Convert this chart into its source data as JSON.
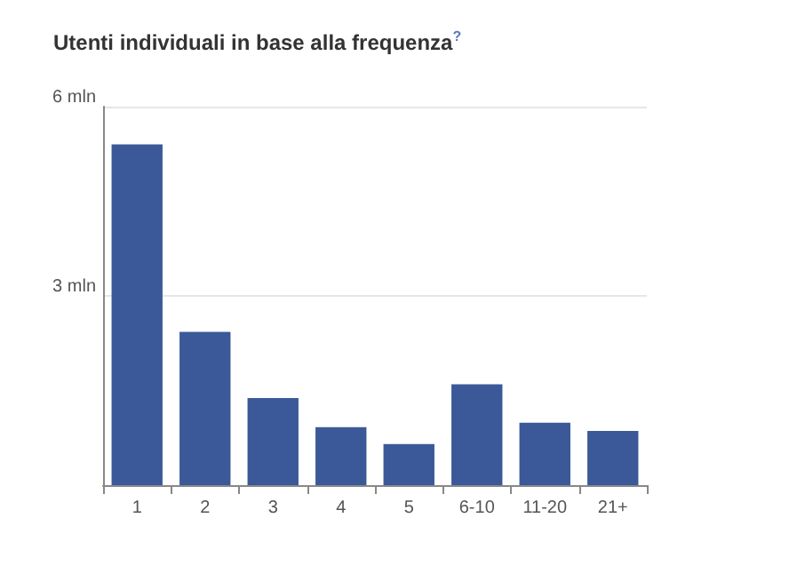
{
  "chart_data": {
    "type": "bar",
    "title": "Utenti individuali in base alla frequenza$^{?}$",
    "categories": [
      "1",
      "2",
      "3",
      "4",
      "5",
      "6-10",
      "11-20",
      "21+"
    ],
    "values": [
      5.4,
      2.43,
      1.38,
      0.92,
      0.65,
      1.6,
      0.99,
      0.86
    ],
    "color": "#3b5998",
    "ylim": [
      0,
      6
    ],
    "yticks": [
      {
        "value": 0,
        "label": null
      },
      {
        "value": 3,
        "label": "3 mln"
      },
      {
        "value": 6,
        "label": "6 mln"
      }
    ],
    "grid": "y"
  }
}
